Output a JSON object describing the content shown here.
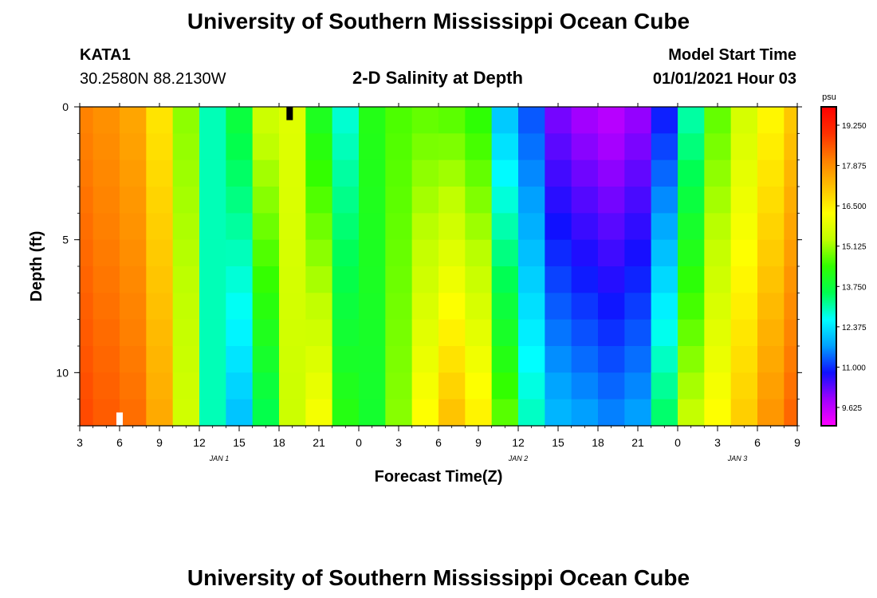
{
  "header": {
    "title": "University of Southern Mississippi Ocean Cube",
    "station_id": "KATA1",
    "station_coords": "30.2580N 88.2130W",
    "subtitle": "2-D Salinity at Depth",
    "model_start_label": "Model Start Time",
    "model_start_value": "01/01/2021 Hour 03"
  },
  "footer": {
    "title": "University of Southern Mississippi Ocean Cube"
  },
  "chart_data": {
    "type": "heatmap",
    "title": "2-D Salinity at Depth",
    "xlabel": "Forecast Time(Z)",
    "ylabel": "Depth (ft)",
    "x_ticks": [
      "3",
      "6",
      "9",
      "12",
      "15",
      "18",
      "21",
      "0",
      "3",
      "6",
      "9",
      "12",
      "15",
      "18",
      "21",
      "0",
      "3",
      "6",
      "9"
    ],
    "x_range_hours": [
      3,
      57
    ],
    "date_labels": [
      {
        "text": "JAN 1",
        "at_hour": 13.5
      },
      {
        "text": "JAN 2",
        "at_hour": 36
      },
      {
        "text": "JAN 3",
        "at_hour": 52.5
      }
    ],
    "y_ticks": [
      "0",
      "5",
      "10"
    ],
    "ylim": [
      0,
      12
    ],
    "y_inverted": true,
    "colorbar": {
      "unit": "psu",
      "min": 9.0,
      "max": 19.875,
      "ticks": [
        "19.250",
        "17.875",
        "16.500",
        "15.125",
        "13.750",
        "12.375",
        "11.000",
        "9.625"
      ],
      "colors": [
        "#ff00ff",
        "#a000ff",
        "#1010ff",
        "#00a0ff",
        "#00ffff",
        "#00ff50",
        "#30ff00",
        "#c0ff00",
        "#ffff00",
        "#ffc000",
        "#ff8000",
        "#ff3000",
        "#ff0000"
      ]
    },
    "time_hours": [
      3,
      5,
      7,
      9,
      11,
      13,
      15,
      17,
      19,
      21,
      23,
      25,
      27,
      29,
      31,
      33,
      35,
      37,
      39,
      41,
      43,
      45,
      47,
      49,
      51,
      53,
      55,
      57
    ],
    "surface_salinity_psu": [
      18.0,
      17.8,
      17.5,
      16.6,
      15.0,
      13.0,
      13.8,
      15.6,
      15.8,
      14.0,
      12.8,
      14.2,
      14.6,
      14.7,
      14.6,
      14.3,
      12.0,
      11.2,
      10.1,
      9.8,
      9.6,
      9.9,
      10.8,
      13.0,
      14.7,
      15.6,
      16.3,
      17.0
    ],
    "bottom_salinity_psu": [
      18.7,
      18.5,
      18.3,
      17.5,
      15.6,
      13.0,
      12.0,
      13.5,
      15.5,
      16.2,
      14.3,
      13.9,
      15.0,
      16.3,
      17.2,
      16.5,
      14.8,
      13.0,
      12.0,
      11.8,
      11.6,
      11.8,
      13.5,
      15.5,
      16.3,
      17.0,
      17.8,
      18.4
    ],
    "markers": [
      {
        "hour": 6.0,
        "depth_from": 11.5,
        "depth_to": 12.0,
        "color": "#ffffff"
      },
      {
        "hour": 18.8,
        "depth_from": 0.0,
        "depth_to": 0.5,
        "color": "#000000"
      }
    ]
  }
}
